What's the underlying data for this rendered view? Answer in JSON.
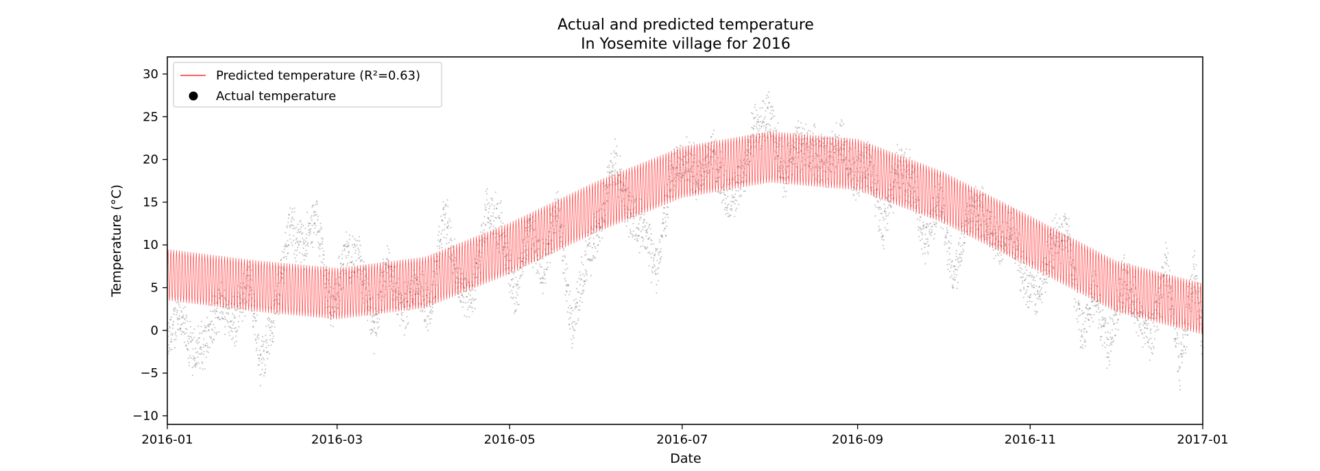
{
  "chart_data": {
    "type": "scatter",
    "title": "Actual and predicted temperature",
    "subtitle": "In Yosemite village for 2016",
    "xlabel": "Date",
    "ylabel": "Temperature (°C)",
    "xlim": [
      "2016-01-01",
      "2017-01-01"
    ],
    "ylim": [
      -11,
      32
    ],
    "grid": false,
    "legend_position": "top-left",
    "x_ticks": [
      "2016-01",
      "2016-03",
      "2016-05",
      "2016-07",
      "2016-09",
      "2016-11",
      "2017-01"
    ],
    "y_ticks": [
      -10,
      -5,
      0,
      5,
      10,
      15,
      20,
      25,
      30
    ],
    "series": [
      {
        "name": "Predicted temperature (R²=0.63)",
        "kind": "line",
        "color": "#ff0000",
        "seasonal_midline": [
          [
            "2016-01-01",
            6.5
          ],
          [
            "2016-02-01",
            5.2
          ],
          [
            "2016-03-01",
            4.3
          ],
          [
            "2016-04-01",
            5.6
          ],
          [
            "2016-05-01",
            9.6
          ],
          [
            "2016-06-01",
            14.5
          ],
          [
            "2016-07-01",
            18.5
          ],
          [
            "2016-08-01",
            20.3
          ],
          [
            "2016-09-01",
            19.4
          ],
          [
            "2016-10-01",
            15.6
          ],
          [
            "2016-11-01",
            10.4
          ],
          [
            "2016-12-01",
            5.2
          ],
          [
            "2017-01-01",
            2.5
          ]
        ],
        "daily_swing": 3.0
      },
      {
        "name": "Actual temperature",
        "kind": "scatter",
        "color": "#000000",
        "daily_means": [
          [
            "2016-01-01",
            -2.0
          ],
          [
            "2016-01-05",
            2.0
          ],
          [
            "2016-01-10",
            -3.0
          ],
          [
            "2016-01-15",
            -1.0
          ],
          [
            "2016-01-20",
            3.0
          ],
          [
            "2016-01-25",
            1.0
          ],
          [
            "2016-01-30",
            6.0
          ],
          [
            "2016-02-03",
            -4.0
          ],
          [
            "2016-02-08",
            2.0
          ],
          [
            "2016-02-13",
            12.0
          ],
          [
            "2016-02-18",
            10.0
          ],
          [
            "2016-02-23",
            13.0
          ],
          [
            "2016-02-28",
            2.0
          ],
          [
            "2016-03-04",
            9.0
          ],
          [
            "2016-03-09",
            8.0
          ],
          [
            "2016-03-14",
            0.0
          ],
          [
            "2016-03-19",
            8.0
          ],
          [
            "2016-03-24",
            2.0
          ],
          [
            "2016-03-29",
            6.0
          ],
          [
            "2016-04-03",
            2.0
          ],
          [
            "2016-04-08",
            14.0
          ],
          [
            "2016-04-13",
            5.0
          ],
          [
            "2016-04-18",
            4.0
          ],
          [
            "2016-04-23",
            14.0
          ],
          [
            "2016-04-28",
            12.0
          ],
          [
            "2016-05-03",
            4.0
          ],
          [
            "2016-05-08",
            12.0
          ],
          [
            "2016-05-13",
            7.0
          ],
          [
            "2016-05-18",
            15.0
          ],
          [
            "2016-05-23",
            0.0
          ],
          [
            "2016-05-28",
            8.0
          ],
          [
            "2016-06-02",
            13.0
          ],
          [
            "2016-06-07",
            20.0
          ],
          [
            "2016-06-12",
            14.0
          ],
          [
            "2016-06-17",
            12.0
          ],
          [
            "2016-06-22",
            7.0
          ],
          [
            "2016-06-27",
            18.0
          ],
          [
            "2016-07-02",
            20.0
          ],
          [
            "2016-07-07",
            18.0
          ],
          [
            "2016-07-12",
            21.0
          ],
          [
            "2016-07-17",
            15.0
          ],
          [
            "2016-07-22",
            18.0
          ],
          [
            "2016-07-27",
            24.0
          ],
          [
            "2016-08-01",
            25.0
          ],
          [
            "2016-08-06",
            18.0
          ],
          [
            "2016-08-11",
            22.0
          ],
          [
            "2016-08-16",
            21.0
          ],
          [
            "2016-08-21",
            20.0
          ],
          [
            "2016-08-26",
            22.0
          ],
          [
            "2016-08-31",
            18.0
          ],
          [
            "2016-09-05",
            20.0
          ],
          [
            "2016-09-10",
            12.0
          ],
          [
            "2016-09-15",
            19.0
          ],
          [
            "2016-09-20",
            18.0
          ],
          [
            "2016-09-25",
            10.0
          ],
          [
            "2016-09-30",
            16.0
          ],
          [
            "2016-10-05",
            6.0
          ],
          [
            "2016-10-10",
            14.0
          ],
          [
            "2016-10-15",
            14.0
          ],
          [
            "2016-10-20",
            10.0
          ],
          [
            "2016-10-25",
            12.0
          ],
          [
            "2016-10-30",
            6.0
          ],
          [
            "2016-11-04",
            4.0
          ],
          [
            "2016-11-09",
            10.0
          ],
          [
            "2016-11-14",
            12.0
          ],
          [
            "2016-11-19",
            0.0
          ],
          [
            "2016-11-24",
            4.0
          ],
          [
            "2016-11-29",
            -2.0
          ],
          [
            "2016-12-04",
            6.0
          ],
          [
            "2016-12-09",
            2.0
          ],
          [
            "2016-12-14",
            -1.0
          ],
          [
            "2016-12-19",
            8.0
          ],
          [
            "2016-12-24",
            -4.0
          ],
          [
            "2016-12-29",
            7.0
          ],
          [
            "2017-01-01",
            0.0
          ]
        ],
        "spread": 3.5
      }
    ]
  }
}
